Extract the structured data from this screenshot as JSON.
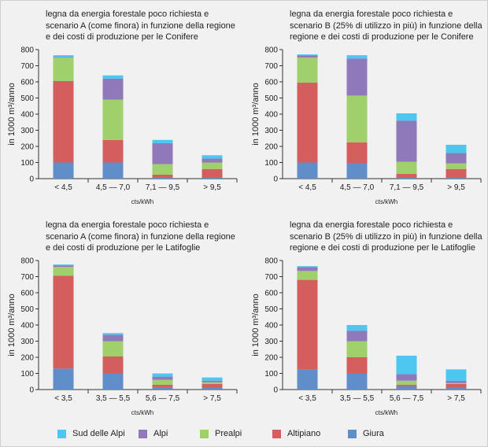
{
  "legend": [
    {
      "name": "Sud delle Alpi",
      "color": "#4dc7ef"
    },
    {
      "name": "Alpi",
      "color": "#8f79bb"
    },
    {
      "name": "Prealpi",
      "color": "#9fd06b"
    },
    {
      "name": "Altipiano",
      "color": "#d45e5e"
    },
    {
      "name": "Giura",
      "color": "#5f8ec9"
    }
  ],
  "chart_data": [
    {
      "type": "bar",
      "stacked": true,
      "title": "legna da energia forestale poco richiesta e scenario A (come finora) in funzione della regione e dei costi di produzione per le Conifere",
      "ylabel": "in 1000 m³/anno",
      "xlabel": "cts/kWh",
      "ylim": [
        0,
        800
      ],
      "yticks": [
        0,
        100,
        200,
        300,
        400,
        500,
        600,
        700,
        800
      ],
      "categories": [
        "< 4,5",
        "4,5 — 7,0",
        "7,1 — 9,5",
        "> 9,5"
      ],
      "series": [
        {
          "name": "Giura",
          "values": [
            100,
            100,
            5,
            5
          ]
        },
        {
          "name": "Altipiano",
          "values": [
            505,
            140,
            20,
            55
          ]
        },
        {
          "name": "Prealpi",
          "values": [
            145,
            250,
            65,
            40
          ]
        },
        {
          "name": "Alpi",
          "values": [
            5,
            130,
            130,
            25
          ]
        },
        {
          "name": "Sud delle Alpi",
          "values": [
            10,
            20,
            20,
            20
          ]
        }
      ]
    },
    {
      "type": "bar",
      "stacked": true,
      "title": "legna da energia forestale poco richiesta e scenario B (25% di utilizzo in più) in funzione della regione e dei costi di produzione per le Conifere",
      "ylabel": "in 1000 m³/anno",
      "xlabel": "cts/kWh",
      "ylim": [
        0,
        800
      ],
      "yticks": [
        0,
        100,
        200,
        300,
        400,
        500,
        600,
        700,
        800
      ],
      "categories": [
        "< 4,5",
        "4,5 — 7,0",
        "7,1 — 9,5",
        "> 9,5"
      ],
      "series": [
        {
          "name": "Giura",
          "values": [
            100,
            95,
            5,
            5
          ]
        },
        {
          "name": "Altipiano",
          "values": [
            495,
            130,
            25,
            55
          ]
        },
        {
          "name": "Prealpi",
          "values": [
            155,
            290,
            75,
            35
          ]
        },
        {
          "name": "Alpi",
          "values": [
            15,
            230,
            255,
            65
          ]
        },
        {
          "name": "Sud delle Alpi",
          "values": [
            5,
            20,
            45,
            50
          ]
        }
      ]
    },
    {
      "type": "bar",
      "stacked": true,
      "title": "legna da energia forestale poco richiesta e scenario A (come finora) in funzione della regione e dei costi di produzione per le Latifoglie",
      "ylabel": "in 1000 m³/anno",
      "xlabel": "cts/kWh",
      "ylim": [
        0,
        800
      ],
      "yticks": [
        0,
        100,
        200,
        300,
        400,
        500,
        600,
        700,
        800
      ],
      "categories": [
        "< 3,5",
        "3,5 — 5,5",
        "5,6 — 7,5",
        "> 7,5"
      ],
      "series": [
        {
          "name": "Giura",
          "values": [
            130,
            100,
            15,
            10
          ]
        },
        {
          "name": "Altipiano",
          "values": [
            575,
            105,
            15,
            25
          ]
        },
        {
          "name": "Prealpi",
          "values": [
            55,
            95,
            30,
            10
          ]
        },
        {
          "name": "Alpi",
          "values": [
            10,
            40,
            20,
            10
          ]
        },
        {
          "name": "Sud delle Alpi",
          "values": [
            5,
            10,
            20,
            20
          ]
        }
      ]
    },
    {
      "type": "bar",
      "stacked": true,
      "title": "legna da energia forestale poco richiesta e scenario B (25% di utilizzo in più) in funzione della regione e dei costi di produzione per le Latifoglie",
      "ylabel": "in 1000 m³/anno",
      "xlabel": "cts/kWh",
      "ylim": [
        0,
        800
      ],
      "yticks": [
        0,
        100,
        200,
        300,
        400,
        500,
        600,
        700,
        800
      ],
      "categories": [
        "< 3,5",
        "3,5 — 5,5",
        "5,6 — 7,5",
        "> 7,5"
      ],
      "series": [
        {
          "name": "Giura",
          "values": [
            125,
            100,
            20,
            10
          ]
        },
        {
          "name": "Altipiano",
          "values": [
            555,
            100,
            10,
            25
          ]
        },
        {
          "name": "Prealpi",
          "values": [
            55,
            100,
            25,
            5
          ]
        },
        {
          "name": "Alpi",
          "values": [
            25,
            65,
            40,
            15
          ]
        },
        {
          "name": "Sud delle Alpi",
          "values": [
            5,
            35,
            115,
            70
          ]
        }
      ]
    }
  ]
}
